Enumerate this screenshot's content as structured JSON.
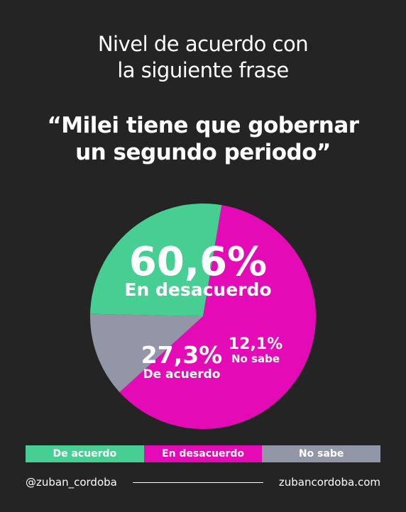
{
  "title": {
    "line1": "Nivel de acuerdo con",
    "line2": "la siguiente frase"
  },
  "quote": {
    "line1": "“Milei tiene que gobernar",
    "line2": "un segundo periodo”"
  },
  "chart_data": {
    "type": "pie",
    "slices": [
      {
        "label": "En desacuerdo",
        "value": 60.6,
        "value_label": "60,6%",
        "color": "#e40ab5"
      },
      {
        "label": "No sabe",
        "value": 12.1,
        "value_label": "12,1%",
        "color": "#9296a7"
      },
      {
        "label": "De acuerdo",
        "value": 27.3,
        "value_label": "27,3%",
        "color": "#47cf93"
      }
    ],
    "legend": [
      {
        "label": "De acuerdo",
        "color": "#47cf93"
      },
      {
        "label": "En desacuerdo",
        "color": "#e40ab5"
      },
      {
        "label": "No sabe",
        "color": "#9296a7"
      }
    ],
    "legend_placement": "bottom"
  },
  "footer": {
    "handle": "@zuban_cordoba",
    "website": "zubancordoba.com"
  }
}
